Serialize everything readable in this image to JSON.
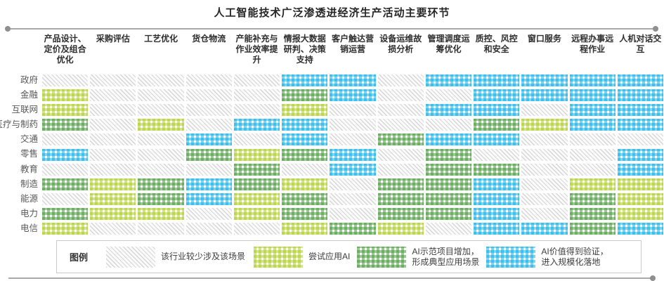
{
  "title": "人工智能技术广泛渗透进经济生产活动主要环节",
  "colors": {
    "none_hatch": "#d6d6d6",
    "try_ai": "#a7c816",
    "demo_ai": "#409634",
    "scale_ai": "#00aae6",
    "rule": "#a9a9a9",
    "title_text": "#262626"
  },
  "legend": {
    "title": "图例",
    "items": [
      {
        "level": 0,
        "label": "该行业较少涉及该场景"
      },
      {
        "level": 1,
        "label": "尝试应用AI"
      },
      {
        "level": 2,
        "label": "AI示范项目增加，\n形成典型应用场景"
      },
      {
        "level": 3,
        "label": "AI价值得到验证，\n进入规模化落地"
      }
    ]
  },
  "chart_data": {
    "type": "heatmap",
    "title": "人工智能技术广泛渗透进经济生产活动主要环节",
    "x_categories": [
      "产品设计、定价及组合优化",
      "采购评估",
      "工艺优化",
      "货仓物流",
      "产能补充与作业效率提升",
      "情报大数据研判、决策支持",
      "客户触达营销运营",
      "设备运维故损分析",
      "管理调度运筹优化",
      "质控、风控和安全",
      "窗口服务",
      "远程办事远程作业",
      "人机对话交互"
    ],
    "y_categories": [
      "政府",
      "金融",
      "互联网",
      "医疗与制药",
      "交通",
      "零售",
      "教育",
      "制造",
      "能源",
      "电力",
      "电信"
    ],
    "level_labels": [
      "该行业较少涉及该场景",
      "尝试应用AI",
      "AI示范项目增加，形成典型应用场景",
      "AI价值得到验证，进入规模化落地"
    ],
    "values": [
      [
        0,
        0,
        0,
        0,
        0,
        3,
        3,
        0,
        3,
        3,
        3,
        3,
        3
      ],
      [
        1,
        0,
        0,
        0,
        0,
        2,
        3,
        0,
        0,
        3,
        3,
        3,
        3
      ],
      [
        1,
        0,
        0,
        0,
        0,
        1,
        0,
        0,
        3,
        3,
        0,
        3,
        3
      ],
      [
        2,
        0,
        1,
        0,
        3,
        3,
        0,
        0,
        0,
        2,
        1,
        3,
        3
      ],
      [
        0,
        0,
        0,
        3,
        0,
        3,
        0,
        2,
        3,
        3,
        0,
        0,
        0
      ],
      [
        3,
        0,
        0,
        2,
        1,
        2,
        3,
        0,
        2,
        0,
        0,
        0,
        3
      ],
      [
        0,
        0,
        0,
        0,
        2,
        0,
        3,
        0,
        2,
        2,
        0,
        0,
        3
      ],
      [
        2,
        1,
        2,
        3,
        2,
        1,
        0,
        2,
        2,
        3,
        0,
        1,
        1
      ],
      [
        0,
        1,
        2,
        3,
        1,
        2,
        0,
        2,
        2,
        3,
        0,
        2,
        1
      ],
      [
        2,
        1,
        1,
        0,
        1,
        2,
        0,
        2,
        2,
        3,
        0,
        2,
        1
      ],
      [
        1,
        0,
        0,
        0,
        0,
        1,
        2,
        1,
        0,
        3,
        3,
        2,
        3
      ]
    ]
  }
}
